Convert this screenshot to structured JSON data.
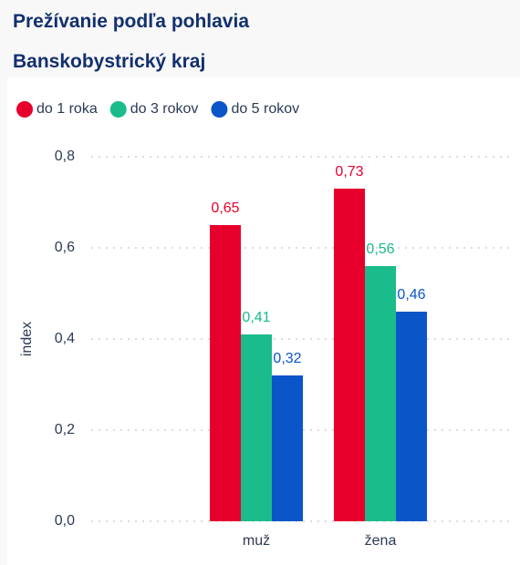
{
  "chart_data": {
    "type": "bar",
    "title": "Prežívanie podľa pohlavia",
    "subtitle": "Banskobystrický kraj",
    "y_label": "index",
    "categories": [
      "muž",
      "žena"
    ],
    "series": [
      {
        "name": "do 1 roka",
        "color": "#e8002d",
        "values": [
          0.65,
          0.73
        ],
        "value_labels": [
          "0,65",
          "0,73"
        ]
      },
      {
        "name": "do 3 rokov",
        "color": "#1abc8c",
        "values": [
          0.41,
          0.56
        ],
        "value_labels": [
          "0,41",
          "0,56"
        ]
      },
      {
        "name": "do 5 rokov",
        "color": "#0a55c8",
        "values": [
          0.32,
          0.46
        ],
        "value_labels": [
          "0,32",
          "0,46"
        ]
      }
    ],
    "ylim": [
      0,
      0.8
    ],
    "yticks": [
      {
        "value": 0,
        "label": "0,0"
      },
      {
        "value": 0.2,
        "label": "0,2"
      },
      {
        "value": 0.4,
        "label": "0,4"
      },
      {
        "value": 0.6,
        "label": "0,6"
      },
      {
        "value": 0.8,
        "label": "0,8"
      }
    ],
    "grid": true,
    "legend": "top-left"
  }
}
